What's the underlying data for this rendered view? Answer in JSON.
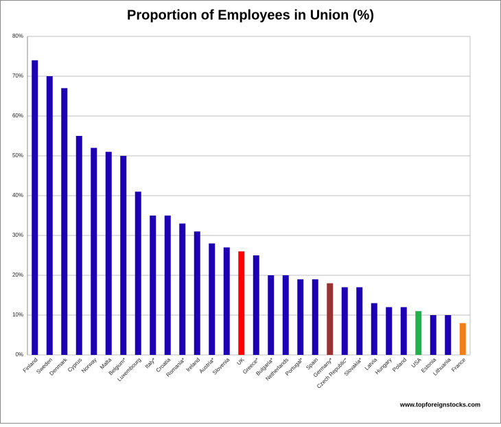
{
  "chart_data": {
    "type": "bar",
    "title": "Proportion of Employees in Union (%)",
    "categories": [
      "Finland",
      "Sweden",
      "Denmark",
      "Cyprus",
      "Norway",
      "Malta",
      "Belgium*",
      "Luxembourg",
      "Italy*",
      "Croatia",
      "Romania*",
      "Ireland",
      "Austria*",
      "Slovenia",
      "UK",
      "Greece*",
      "Bulgaria*",
      "Netherlands",
      "Portugal*",
      "Spain",
      "Germany*",
      "Czech Republic*",
      "Slovakia*",
      "Latvia",
      "Hungary",
      "Poland",
      "USA",
      "Estonia",
      "Lithuania",
      "France"
    ],
    "values": [
      74,
      70,
      67,
      55,
      52,
      51,
      50,
      41,
      35,
      35,
      33,
      31,
      28,
      27,
      26,
      25,
      20,
      20,
      19,
      19,
      18,
      17,
      17,
      13,
      12,
      12,
      11,
      10,
      10,
      8
    ],
    "colors": [
      "#1e00b4",
      "#1e00b4",
      "#1e00b4",
      "#1e00b4",
      "#1e00b4",
      "#1e00b4",
      "#1e00b4",
      "#1e00b4",
      "#1e00b4",
      "#1e00b4",
      "#1e00b4",
      "#1e00b4",
      "#1e00b4",
      "#1e00b4",
      "#ff0000",
      "#1e00b4",
      "#1e00b4",
      "#1e00b4",
      "#1e00b4",
      "#1e00b4",
      "#993333",
      "#1e00b4",
      "#1e00b4",
      "#1e00b4",
      "#1e00b4",
      "#1e00b4",
      "#22b14c",
      "#1e00b4",
      "#1e00b4",
      "#f07f1a"
    ],
    "ylim": [
      0,
      80
    ],
    "yticks": [
      {
        "value": 0,
        "label": "0%"
      },
      {
        "value": 10,
        "label": "10%"
      },
      {
        "value": 20,
        "label": "20%"
      },
      {
        "value": 30,
        "label": "30%"
      },
      {
        "value": 40,
        "label": "40%"
      },
      {
        "value": 50,
        "label": "50%"
      },
      {
        "value": 60,
        "label": "60%"
      },
      {
        "value": 70,
        "label": "70%"
      },
      {
        "value": 80,
        "label": "80%"
      }
    ],
    "grid": true,
    "source": "www.topforeignstocks.com"
  }
}
